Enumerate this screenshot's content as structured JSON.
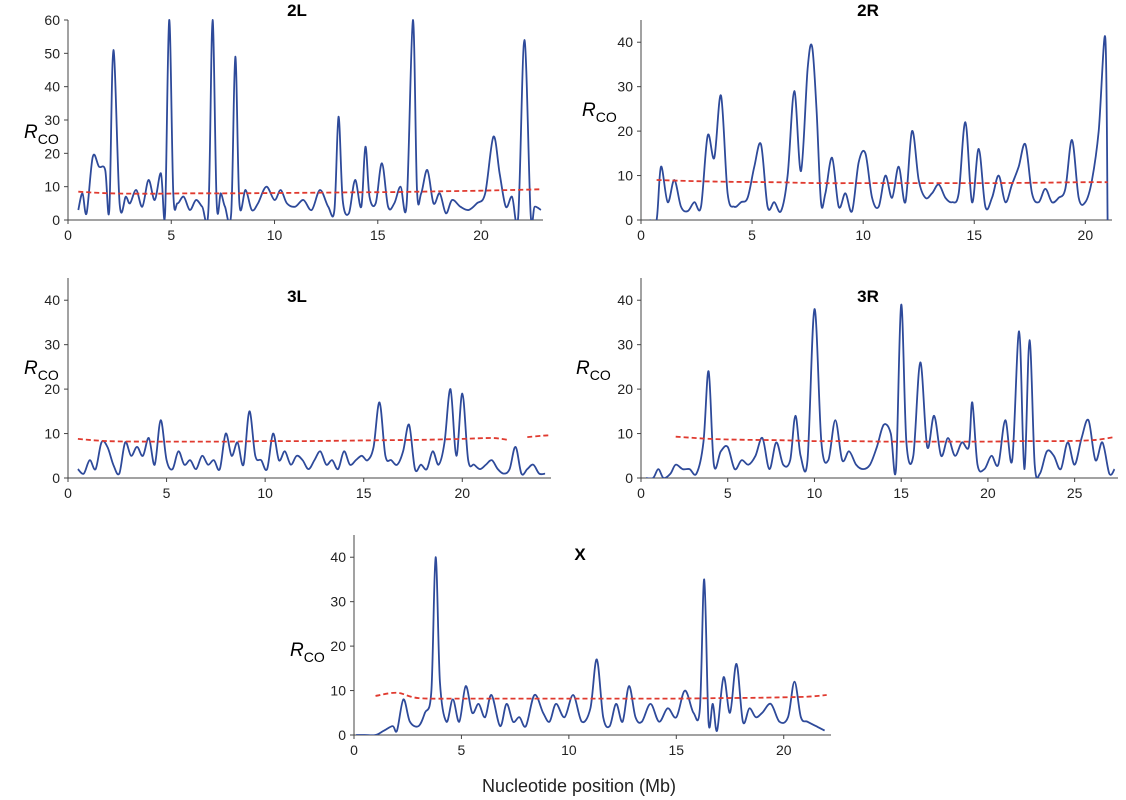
{
  "figure": {
    "xlabel": "Nucleotide position (Mb)",
    "ylabel_main": "R",
    "ylabel_sub": "CO"
  },
  "colors": {
    "observed": "#2e4a9a",
    "expected": "#e03a2f",
    "axis": "#444444"
  },
  "chart_data": [
    {
      "type": "line",
      "title": "2L",
      "xlim": [
        0,
        23
      ],
      "ylim": [
        0,
        60
      ],
      "xticks": [
        0,
        5,
        10,
        15,
        20
      ],
      "yticks": [
        0,
        10,
        20,
        30,
        40,
        50,
        60
      ],
      "series": [
        {
          "role": "observed",
          "x": [
            0.5,
            0.7,
            0.9,
            1.2,
            1.5,
            1.8,
            2.0,
            2.2,
            2.5,
            2.8,
            3.0,
            3.3,
            3.6,
            3.9,
            4.2,
            4.5,
            4.7,
            4.9,
            5.1,
            5.3,
            5.6,
            5.9,
            6.2,
            6.5,
            6.8,
            7.0,
            7.2,
            7.4,
            7.6,
            7.9,
            8.1,
            8.3,
            8.6,
            8.9,
            9.2,
            9.6,
            10.0,
            10.3,
            10.6,
            11.0,
            11.4,
            11.8,
            12.2,
            12.6,
            12.9,
            13.1,
            13.3,
            13.6,
            13.9,
            14.2,
            14.4,
            14.6,
            14.9,
            15.2,
            15.5,
            15.8,
            16.1,
            16.4,
            16.7,
            16.9,
            17.1,
            17.4,
            17.7,
            18.0,
            18.3,
            18.6,
            19.0,
            19.4,
            19.8,
            20.2,
            20.6,
            20.9,
            21.2,
            21.5,
            21.8,
            22.1,
            22.4,
            22.6,
            22.9
          ],
          "y": [
            3,
            8,
            2,
            19,
            16,
            15,
            3,
            51,
            5,
            7,
            5,
            9,
            4,
            12,
            6,
            14,
            2,
            60,
            8,
            5,
            7,
            3,
            6,
            4,
            3,
            60,
            5,
            8,
            4,
            2,
            49,
            5,
            9,
            3,
            5,
            10,
            6,
            9,
            5,
            4,
            6,
            3,
            9,
            4,
            3,
            31,
            6,
            2,
            12,
            4,
            22,
            7,
            5,
            17,
            4,
            5,
            10,
            5,
            60,
            9,
            8,
            15,
            5,
            8,
            2,
            6,
            4,
            3,
            5,
            8,
            25,
            14,
            4,
            7,
            1,
            54,
            2,
            4,
            3
          ]
        },
        {
          "role": "expected",
          "x": [
            0.5,
            2,
            4,
            6,
            8,
            10,
            12,
            14,
            16,
            18,
            20,
            21.5,
            22.9
          ],
          "y": [
            8.5,
            8.0,
            7.9,
            8.0,
            8.0,
            8.1,
            8.2,
            8.3,
            8.4,
            8.6,
            8.8,
            9.0,
            9.2
          ]
        }
      ]
    },
    {
      "type": "line",
      "title": "2R",
      "xlim": [
        0,
        21.2
      ],
      "ylim": [
        0,
        45
      ],
      "xticks": [
        0,
        5,
        10,
        15,
        20
      ],
      "yticks": [
        0,
        10,
        20,
        30,
        40
      ],
      "series": [
        {
          "role": "observed",
          "x": [
            0.4,
            0.7,
            0.9,
            1.2,
            1.5,
            1.8,
            2.1,
            2.4,
            2.7,
            3.0,
            3.3,
            3.6,
            3.9,
            4.2,
            4.5,
            4.8,
            5.1,
            5.4,
            5.7,
            6.0,
            6.3,
            6.6,
            6.9,
            7.2,
            7.5,
            7.7,
            7.9,
            8.1,
            8.3,
            8.6,
            8.9,
            9.2,
            9.5,
            9.8,
            10.1,
            10.4,
            10.7,
            11.0,
            11.3,
            11.6,
            11.9,
            12.2,
            12.5,
            12.8,
            13.1,
            13.4,
            13.7,
            14.0,
            14.3,
            14.6,
            14.9,
            15.2,
            15.5,
            15.8,
            16.1,
            16.4,
            16.7,
            17.0,
            17.3,
            17.6,
            17.9,
            18.2,
            18.5,
            18.8,
            19.1,
            19.4,
            19.7,
            20.0,
            20.3,
            20.6,
            20.9,
            21.0
          ],
          "y": [
            0,
            0,
            12,
            4,
            9,
            3,
            2,
            4,
            3,
            19,
            14,
            28,
            6,
            3,
            4,
            5,
            12,
            17,
            3,
            4,
            2,
            10,
            29,
            11,
            34,
            39,
            25,
            4,
            6,
            14,
            3,
            6,
            2,
            13,
            15,
            5,
            3,
            10,
            5,
            12,
            4,
            20,
            9,
            5,
            6,
            8,
            5,
            4,
            6,
            22,
            4,
            16,
            3,
            5,
            10,
            4,
            8,
            12,
            17,
            6,
            4,
            7,
            4,
            5,
            7,
            18,
            5,
            4,
            9,
            20,
            41,
            0
          ]
        },
        {
          "role": "expected",
          "x": [
            0.7,
            2,
            4,
            6,
            8,
            10,
            12,
            14,
            16,
            18,
            20,
            21
          ],
          "y": [
            9.0,
            8.8,
            8.6,
            8.5,
            8.3,
            8.3,
            8.3,
            8.3,
            8.3,
            8.4,
            8.5,
            8.5
          ]
        }
      ]
    },
    {
      "type": "line",
      "title": "3L",
      "xlim": [
        0,
        24.5
      ],
      "ylim": [
        0,
        45
      ],
      "xticks": [
        0,
        5,
        10,
        15,
        20
      ],
      "yticks": [
        0,
        10,
        20,
        30,
        40
      ],
      "series": [
        {
          "role": "observed",
          "x": [
            0.5,
            0.8,
            1.1,
            1.4,
            1.7,
            2.0,
            2.3,
            2.6,
            2.9,
            3.2,
            3.5,
            3.8,
            4.1,
            4.4,
            4.7,
            5.0,
            5.3,
            5.6,
            5.9,
            6.2,
            6.5,
            6.8,
            7.1,
            7.4,
            7.7,
            8.0,
            8.3,
            8.6,
            8.9,
            9.2,
            9.5,
            9.8,
            10.1,
            10.4,
            10.7,
            11.0,
            11.3,
            11.6,
            11.9,
            12.2,
            12.5,
            12.8,
            13.1,
            13.4,
            13.7,
            14.0,
            14.3,
            14.6,
            14.9,
            15.2,
            15.5,
            15.8,
            16.1,
            16.4,
            16.7,
            17.0,
            17.3,
            17.6,
            17.9,
            18.2,
            18.5,
            18.8,
            19.1,
            19.4,
            19.7,
            20.0,
            20.3,
            20.6,
            20.9,
            21.2,
            21.5,
            21.8,
            22.1,
            22.4,
            22.7,
            23.0,
            23.3,
            23.6,
            23.9,
            24.2
          ],
          "y": [
            2,
            1,
            4,
            2,
            8,
            7,
            3,
            1,
            8,
            5,
            7,
            5,
            9,
            3,
            13,
            4,
            2,
            6,
            3,
            4,
            2,
            5,
            3,
            4,
            2,
            10,
            5,
            8,
            3,
            15,
            5,
            4,
            2,
            10,
            4,
            6,
            3,
            5,
            4,
            2,
            4,
            6,
            3,
            4,
            2,
            6,
            3,
            4,
            5,
            4,
            7,
            17,
            5,
            4,
            3,
            6,
            12,
            2,
            3,
            2,
            6,
            3,
            8,
            20,
            5,
            19,
            4,
            3,
            2,
            3,
            4,
            2,
            1,
            2,
            7,
            1,
            2,
            3,
            1,
            1
          ]
        },
        {
          "role": "expected",
          "x": [
            0.5,
            2,
            4,
            6,
            8,
            10,
            12,
            14,
            16,
            18,
            20,
            21.5,
            22.3
          ],
          "y": [
            8.8,
            8.3,
            8.2,
            8.2,
            8.2,
            8.3,
            8.3,
            8.4,
            8.5,
            8.6,
            8.8,
            9.0,
            8.6
          ]
        },
        {
          "role": "expected",
          "x": [
            23.3,
            24.0,
            24.4
          ],
          "y": [
            9.2,
            9.5,
            9.6
          ]
        }
      ]
    },
    {
      "type": "line",
      "title": "3R",
      "xlim": [
        0,
        27.5
      ],
      "ylim": [
        0,
        45
      ],
      "xticks": [
        0,
        5,
        10,
        15,
        20,
        25
      ],
      "yticks": [
        0,
        10,
        20,
        30,
        40
      ],
      "series": [
        {
          "role": "observed",
          "x": [
            0.3,
            0.7,
            1.0,
            1.3,
            1.7,
            2.0,
            2.4,
            2.8,
            3.2,
            3.6,
            3.9,
            4.2,
            4.6,
            5.0,
            5.4,
            5.8,
            6.2,
            6.6,
            7.0,
            7.4,
            7.8,
            8.2,
            8.6,
            8.9,
            9.2,
            9.6,
            10.0,
            10.4,
            10.8,
            11.2,
            11.6,
            12.0,
            12.4,
            12.8,
            13.2,
            13.6,
            14.0,
            14.4,
            14.7,
            15.0,
            15.3,
            15.7,
            16.1,
            16.5,
            16.9,
            17.3,
            17.7,
            18.1,
            18.5,
            18.9,
            19.1,
            19.4,
            19.8,
            20.2,
            20.6,
            21.0,
            21.4,
            21.8,
            22.1,
            22.4,
            22.7,
            23.0,
            23.4,
            23.8,
            24.2,
            24.6,
            25.0,
            25.4,
            25.8,
            26.2,
            26.6,
            27.0,
            27.3
          ],
          "y": [
            0,
            0,
            2,
            0,
            1,
            3,
            2,
            2,
            1,
            8,
            24,
            3,
            6,
            7,
            2,
            4,
            3,
            5,
            9,
            2,
            8,
            3,
            4,
            14,
            5,
            4,
            38,
            8,
            4,
            13,
            4,
            6,
            3,
            2,
            3,
            7,
            12,
            10,
            2,
            39,
            8,
            5,
            26,
            7,
            14,
            5,
            9,
            5,
            8,
            7,
            17,
            3,
            2,
            5,
            3,
            13,
            4,
            33,
            2,
            31,
            3,
            1,
            6,
            5,
            2,
            8,
            3,
            9,
            13,
            4,
            8,
            1,
            2
          ]
        },
        {
          "role": "expected",
          "x": [
            2,
            4,
            6,
            8,
            10,
            12,
            14,
            16,
            18,
            20,
            22,
            24,
            26,
            27.3
          ],
          "y": [
            9.3,
            8.8,
            8.6,
            8.5,
            8.3,
            8.3,
            8.2,
            8.2,
            8.2,
            8.2,
            8.3,
            8.3,
            8.5,
            9.2
          ]
        }
      ]
    },
    {
      "type": "line",
      "title": "X",
      "xlim": [
        0,
        22.2
      ],
      "ylim": [
        0,
        45
      ],
      "xticks": [
        0,
        5,
        10,
        15,
        20
      ],
      "yticks": [
        0,
        10,
        20,
        30,
        40
      ],
      "series": [
        {
          "role": "observed",
          "x": [
            0.1,
            0.5,
            1.0,
            1.4,
            1.8,
            2.0,
            2.3,
            2.6,
            3.0,
            3.3,
            3.6,
            3.8,
            4.0,
            4.3,
            4.6,
            4.9,
            5.2,
            5.5,
            5.8,
            6.1,
            6.4,
            6.8,
            7.1,
            7.4,
            7.7,
            8.0,
            8.4,
            8.8,
            9.1,
            9.4,
            9.8,
            10.2,
            10.6,
            11.0,
            11.3,
            11.6,
            11.9,
            12.2,
            12.5,
            12.8,
            13.1,
            13.4,
            13.8,
            14.2,
            14.6,
            15.0,
            15.4,
            15.8,
            16.1,
            16.3,
            16.5,
            16.7,
            16.9,
            17.2,
            17.5,
            17.8,
            18.1,
            18.4,
            18.7,
            19.0,
            19.4,
            19.8,
            20.2,
            20.5,
            20.8,
            21.1,
            21.5,
            21.9
          ],
          "y": [
            0,
            0,
            0,
            1,
            2,
            1,
            8,
            3,
            2,
            5,
            10,
            40,
            12,
            3,
            8,
            3,
            11,
            5,
            7,
            4,
            9,
            2,
            7,
            3,
            4,
            2,
            9,
            5,
            3,
            7,
            4,
            9,
            3,
            6,
            17,
            4,
            2,
            7,
            3,
            11,
            4,
            3,
            7,
            3,
            6,
            4,
            10,
            5,
            6,
            35,
            3,
            7,
            1,
            13,
            5,
            16,
            3,
            6,
            4,
            5,
            7,
            3,
            4,
            12,
            4,
            3,
            2,
            1
          ]
        },
        {
          "role": "expected",
          "x": [
            1.0,
            2.0,
            3.0,
            5,
            7,
            9,
            11,
            13,
            15,
            17,
            19,
            21,
            22
          ],
          "y": [
            8.8,
            9.5,
            8.3,
            8.2,
            8.2,
            8.2,
            8.2,
            8.2,
            8.2,
            8.3,
            8.4,
            8.6,
            9.0
          ]
        }
      ]
    }
  ]
}
